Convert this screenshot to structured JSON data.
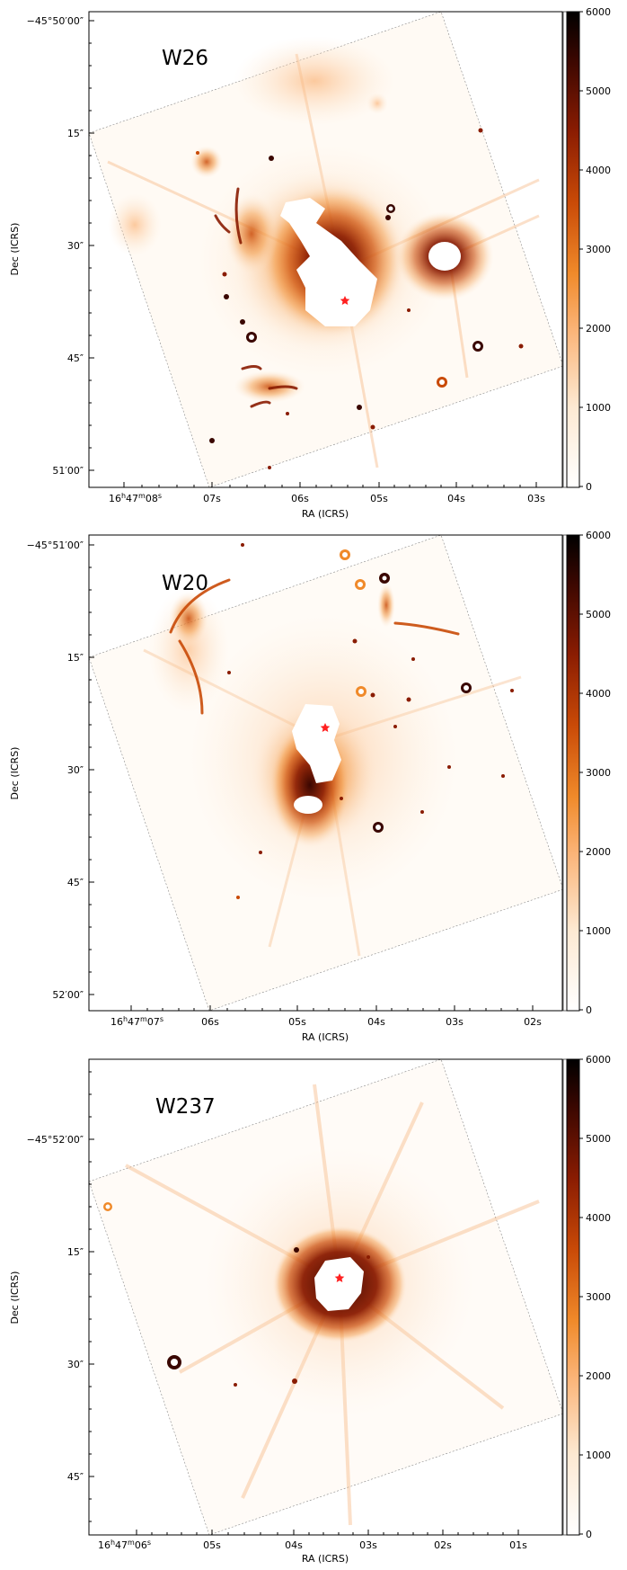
{
  "colorbar": {
    "ticks": [
      "0",
      "1000",
      "2000",
      "3000",
      "4000",
      "5000",
      "6000"
    ],
    "colors": {
      "c0": "#ffffff",
      "c1": "#fde9d2",
      "c2": "#fbb478",
      "c3": "#f08a2a",
      "c4": "#c94a07",
      "c5": "#8a1c02",
      "c6": "#3a0701",
      "c7": "#000000"
    }
  },
  "xlabel": "RA (ICRS)",
  "ylabel": "Dec (ICRS)",
  "marker_color": "#ff2020",
  "panels": [
    {
      "name": "W26",
      "dec_ticks": [
        "−45°50′00″",
        "15″",
        "30″",
        "45″",
        "51′00″"
      ],
      "ra_ticks": [
        "16h47m08s",
        "07s",
        "06s",
        "05s",
        "04s",
        "03s"
      ],
      "ra_first": {
        "h": "16",
        "m": "47",
        "s": "08"
      }
    },
    {
      "name": "W20",
      "dec_ticks": [
        "−45°51′00″",
        "15″",
        "30″",
        "45″",
        "52′00″"
      ],
      "ra_ticks": [
        "16h47m07s",
        "06s",
        "05s",
        "04s",
        "03s",
        "02s"
      ],
      "ra_first": {
        "h": "16",
        "m": "47",
        "s": "07"
      }
    },
    {
      "name": "W237",
      "dec_ticks": [
        "−45°52′00″",
        "15″",
        "30″",
        "45″"
      ],
      "ra_ticks": [
        "16h47m06s",
        "05s",
        "04s",
        "03s",
        "02s",
        "01s"
      ],
      "ra_first": {
        "h": "16",
        "m": "47",
        "s": "06"
      }
    }
  ]
}
